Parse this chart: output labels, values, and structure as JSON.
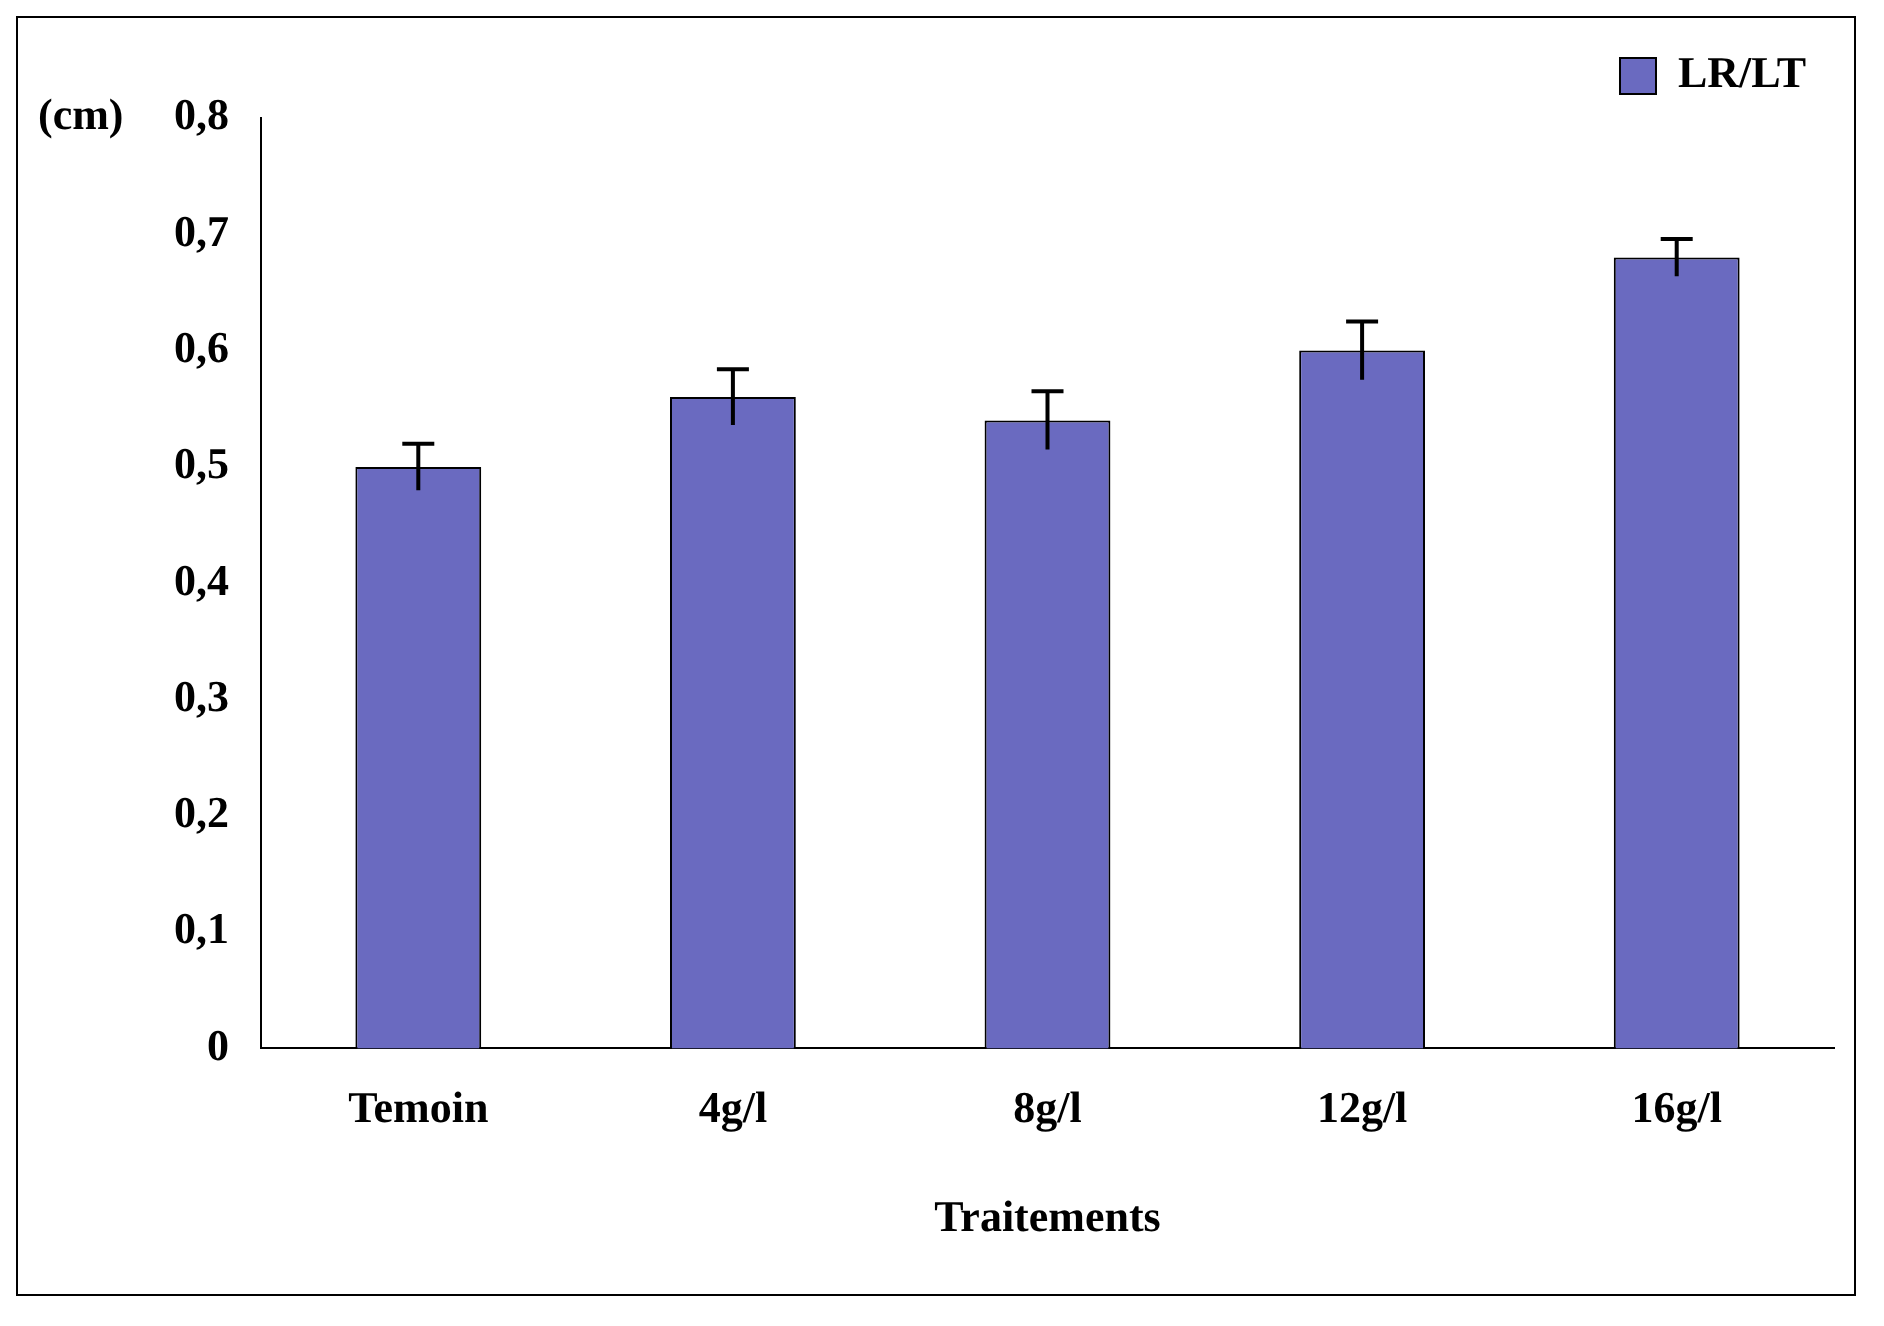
{
  "chart_data": {
    "type": "bar",
    "xlabel": "Traitements",
    "ylabel": "(cm)",
    "categories": [
      "Temoin",
      "4g/l",
      "8g/l",
      "12g/l",
      "16g/l"
    ],
    "series": [
      {
        "name": "LR/LT",
        "color": "#6a6ac0",
        "values": [
          0.5,
          0.56,
          0.54,
          0.6,
          0.68
        ],
        "errors": [
          0.02,
          0.024,
          0.025,
          0.025,
          0.016
        ]
      }
    ],
    "ylim": [
      0,
      0.8
    ],
    "yticks": [
      {
        "value": 0,
        "label": "0"
      },
      {
        "value": 0.1,
        "label": "0,1"
      },
      {
        "value": 0.2,
        "label": "0,2"
      },
      {
        "value": 0.3,
        "label": "0,3"
      },
      {
        "value": 0.4,
        "label": "0,4"
      },
      {
        "value": 0.5,
        "label": "0,5"
      },
      {
        "value": 0.6,
        "label": "0,6"
      },
      {
        "value": 0.7,
        "label": "0,7"
      },
      {
        "value": 0.8,
        "label": "0,8"
      }
    ],
    "grid": false,
    "legend": "top right"
  }
}
